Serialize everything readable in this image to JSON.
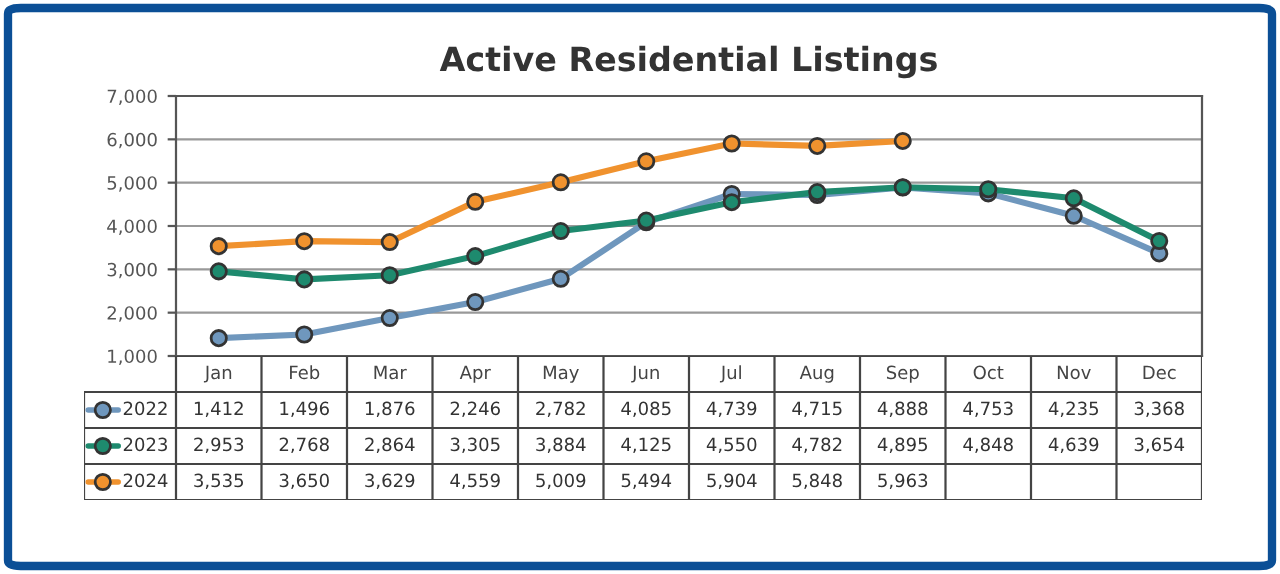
{
  "chart_data": {
    "type": "line",
    "title": "Active Residential Listings",
    "categories": [
      "Jan",
      "Feb",
      "Mar",
      "Apr",
      "May",
      "Jun",
      "Jul",
      "Aug",
      "Sep",
      "Oct",
      "Nov",
      "Dec"
    ],
    "series": [
      {
        "name": "2022",
        "color": "#6f97bd",
        "values": [
          1412,
          1496,
          1876,
          2246,
          2782,
          4085,
          4739,
          4715,
          4888,
          4753,
          4235,
          3368
        ],
        "value_labels": [
          "1,412",
          "1,496",
          "1,876",
          "2,246",
          "2,782",
          "4,085",
          "4,739",
          "4,715",
          "4,888",
          "4,753",
          "4,235",
          "3,368"
        ]
      },
      {
        "name": "2023",
        "color": "#1e8a6e",
        "values": [
          2953,
          2768,
          2864,
          3305,
          3884,
          4125,
          4550,
          4782,
          4895,
          4848,
          4639,
          3654
        ],
        "value_labels": [
          "2,953",
          "2,768",
          "2,864",
          "3,305",
          "3,884",
          "4,125",
          "4,550",
          "4,782",
          "4,895",
          "4,848",
          "4,639",
          "3,654"
        ]
      },
      {
        "name": "2024",
        "color": "#f0922e",
        "values": [
          3535,
          3650,
          3629,
          4559,
          5009,
          5494,
          5904,
          5848,
          5963,
          null,
          null,
          null
        ],
        "value_labels": [
          "3,535",
          "3,650",
          "3,629",
          "4,559",
          "5,009",
          "5,494",
          "5,904",
          "5,848",
          "5,963",
          null,
          null,
          null
        ]
      }
    ],
    "ylim": [
      1000,
      7000
    ],
    "yticks": [
      {
        "value": 1000,
        "label": "1,000"
      },
      {
        "value": 2000,
        "label": "2,000"
      },
      {
        "value": 3000,
        "label": "3,000"
      },
      {
        "value": 4000,
        "label": "4,000"
      },
      {
        "value": 5000,
        "label": "5,000"
      },
      {
        "value": 6000,
        "label": "6,000"
      },
      {
        "value": 7000,
        "label": "7,000"
      }
    ],
    "grid": "y",
    "marker": "circle",
    "line_style": "solid",
    "legend": "bottom"
  }
}
